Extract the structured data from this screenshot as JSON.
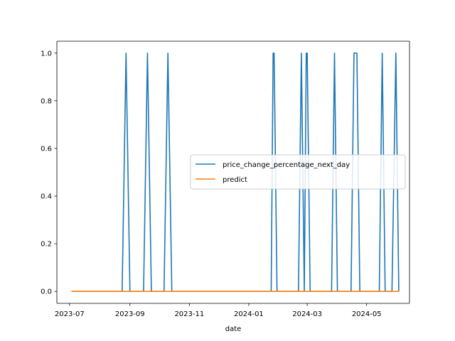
{
  "chart_data": {
    "type": "line",
    "xlabel": "date",
    "ylabel": "",
    "x_ticks": [
      "2023-07",
      "2023-09",
      "2023-11",
      "2024-01",
      "2024-03",
      "2024-05"
    ],
    "y_ticks": [
      "0.0",
      "0.2",
      "0.4",
      "0.6",
      "0.8",
      "1.0"
    ],
    "xlim": [
      "2023-06-18",
      "2024-06-14"
    ],
    "ylim": [
      -0.05,
      1.05
    ],
    "grid": false,
    "legend_position": "center-right",
    "series": [
      {
        "name": "price_change_percentage_next_day",
        "color": "#1f77b4",
        "points": [
          [
            "2023-07-03",
            0
          ],
          [
            "2023-08-24",
            0
          ],
          [
            "2023-08-28",
            1
          ],
          [
            "2023-09-01",
            0
          ],
          [
            "2023-09-15",
            0
          ],
          [
            "2023-09-19",
            1
          ],
          [
            "2023-09-23",
            0
          ],
          [
            "2023-10-06",
            0
          ],
          [
            "2023-10-10",
            1
          ],
          [
            "2023-10-14",
            0
          ],
          [
            "2024-01-24",
            0
          ],
          [
            "2024-01-26",
            1
          ],
          [
            "2024-01-27",
            1
          ],
          [
            "2024-01-30",
            0
          ],
          [
            "2024-02-21",
            0
          ],
          [
            "2024-02-24",
            1
          ],
          [
            "2024-02-27",
            0
          ],
          [
            "2024-02-29",
            1
          ],
          [
            "2024-03-01",
            1
          ],
          [
            "2024-03-04",
            0
          ],
          [
            "2024-03-26",
            0
          ],
          [
            "2024-03-29",
            1
          ],
          [
            "2024-04-01",
            0
          ],
          [
            "2024-04-15",
            0
          ],
          [
            "2024-04-18",
            1
          ],
          [
            "2024-04-21",
            1
          ],
          [
            "2024-04-24",
            0
          ],
          [
            "2024-05-14",
            0
          ],
          [
            "2024-05-17",
            1
          ],
          [
            "2024-05-20",
            0
          ],
          [
            "2024-05-27",
            0
          ],
          [
            "2024-05-31",
            1
          ],
          [
            "2024-06-03",
            0
          ]
        ]
      },
      {
        "name": "predict",
        "color": "#ff7f0e",
        "points": [
          [
            "2023-07-03",
            0
          ],
          [
            "2024-06-03",
            0
          ]
        ]
      }
    ]
  }
}
